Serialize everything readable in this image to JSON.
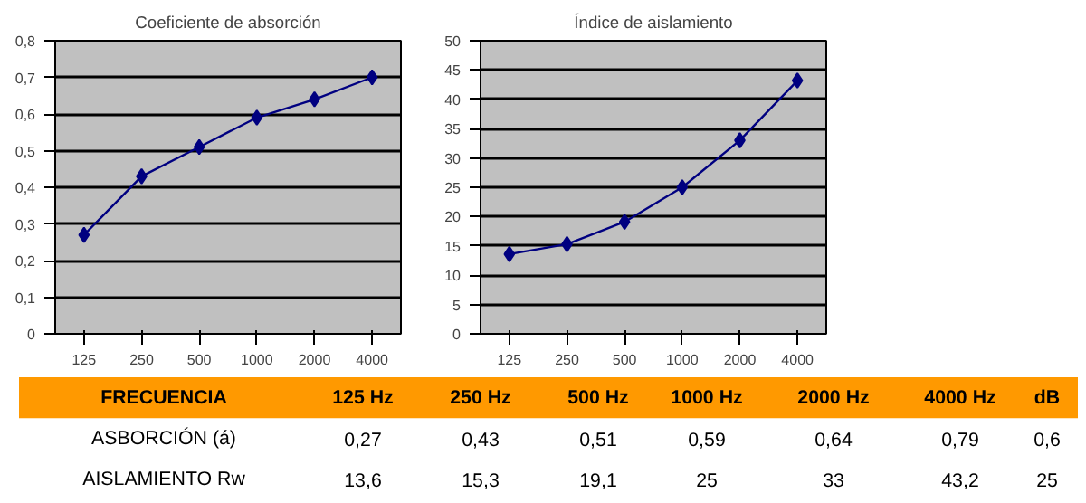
{
  "chart_data": [
    {
      "type": "line",
      "title": "Coeficiente de absorción",
      "categories": [
        "125",
        "250",
        "500",
        "1000",
        "2000",
        "4000"
      ],
      "series": [
        {
          "color": "#000080",
          "values": [
            0.27,
            0.43,
            0.51,
            0.59,
            0.64,
            0.7
          ]
        }
      ],
      "ylim": [
        0,
        0.8
      ],
      "yticks": [
        0,
        {
          "value": 0.1,
          "label": "0,1"
        },
        {
          "value": 0.2,
          "label": "0,2"
        },
        {
          "value": 0.3,
          "label": "0,3"
        },
        {
          "value": 0.4,
          "label": "0,4"
        },
        {
          "value": 0.5,
          "label": "0,5"
        },
        {
          "value": 0.6,
          "label": "0,6"
        },
        {
          "value": 0.7,
          "label": "0,7"
        },
        {
          "value": 0.8,
          "label": "0,8"
        }
      ],
      "grid": "y",
      "marker": "diamond",
      "line_style": "solid"
    },
    {
      "type": "line",
      "title": "Índice de aislamiento",
      "categories": [
        "125",
        "250",
        "500",
        "1000",
        "2000",
        "4000"
      ],
      "series": [
        {
          "color": "#000080",
          "values": [
            13.6,
            15.3,
            19.1,
            25,
            33,
            43.2
          ]
        }
      ],
      "ylim": [
        0,
        50
      ],
      "yticks": [
        0,
        5,
        10,
        15,
        20,
        25,
        30,
        35,
        40,
        45,
        50
      ],
      "grid": "y",
      "marker": "diamond",
      "line_style": "solid"
    },
    {
      "type": "other",
      "xlabel": "FRECUENCIA",
      "categories": [
        "125 Hz",
        "250 Hz",
        "500 Hz",
        "1000 Hz",
        "2000 Hz",
        "4000 Hz",
        "dB"
      ],
      "series": [
        {
          "name": "ASBORCIÓN (á)",
          "values": [
            0.27,
            0.43,
            0.51,
            0.59,
            0.64,
            0.79,
            0.6
          ],
          "value_labels": [
            "0,27",
            "0,43",
            "0,51",
            "0,59",
            "0,64",
            "0,79",
            "0,6"
          ]
        },
        {
          "name": "AISLAMIENTO Rw",
          "values": [
            13.6,
            15.3,
            19.1,
            25,
            33,
            43.2,
            25
          ],
          "value_labels": [
            "13,6",
            "15,3",
            "19,1",
            "25",
            "33",
            "43,2",
            "25"
          ]
        }
      ]
    }
  ]
}
